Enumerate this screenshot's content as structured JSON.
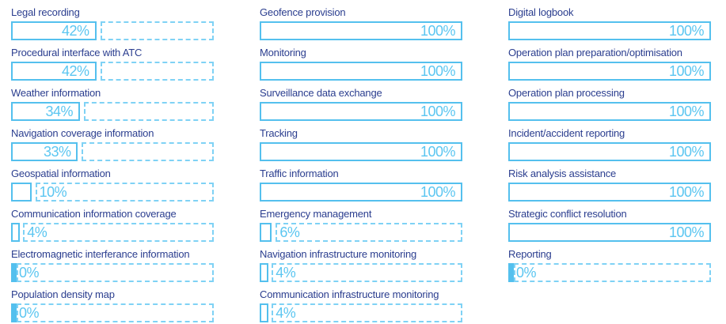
{
  "chart_data": {
    "type": "bar",
    "orientation": "horizontal",
    "unit": "%",
    "value_range": [
      0,
      100
    ],
    "grid": false,
    "legend": false,
    "columns": [
      {
        "items": [
          {
            "label": "Legal recording",
            "value": 42
          },
          {
            "label": "Procedural interface with ATC",
            "value": 42
          },
          {
            "label": "Weather information",
            "value": 34
          },
          {
            "label": "Navigation coverage information",
            "value": 33
          },
          {
            "label": "Geospatial information",
            "value": 10
          },
          {
            "label": "Communication information coverage",
            "value": 4
          },
          {
            "label": "Electromagnetic interferance information",
            "value": 0
          },
          {
            "label": "Population density map",
            "value": 0
          }
        ]
      },
      {
        "items": [
          {
            "label": "Geofence provision",
            "value": 100
          },
          {
            "label": "Monitoring",
            "value": 100
          },
          {
            "label": "Surveillance data exchange",
            "value": 100
          },
          {
            "label": "Tracking",
            "value": 100
          },
          {
            "label": "Traffic information",
            "value": 100
          },
          {
            "label": "Emergency management",
            "value": 6
          },
          {
            "label": "Navigation infrastructure monitoring",
            "value": 4
          },
          {
            "label": "Communication infrastructure monitoring",
            "value": 4
          }
        ]
      },
      {
        "items": [
          {
            "label": "Digital logbook",
            "value": 100
          },
          {
            "label": "Operation plan preparation/optimisation",
            "value": 100
          },
          {
            "label": "Operation plan processing",
            "value": 100
          },
          {
            "label": "Incident/accident reporting",
            "value": 100
          },
          {
            "label": "Risk analysis assistance",
            "value": 100
          },
          {
            "label": "Strategic conflict resolution",
            "value": 100
          },
          {
            "label": "Reporting",
            "value": 0
          }
        ]
      }
    ],
    "colors": {
      "label_text": "#2b3e8f",
      "bar_border": "#54c0ee",
      "bar_remainder_dashed": "#7fd2f5",
      "value_text": "#5bc6f1",
      "background": "#ffffff"
    }
  }
}
